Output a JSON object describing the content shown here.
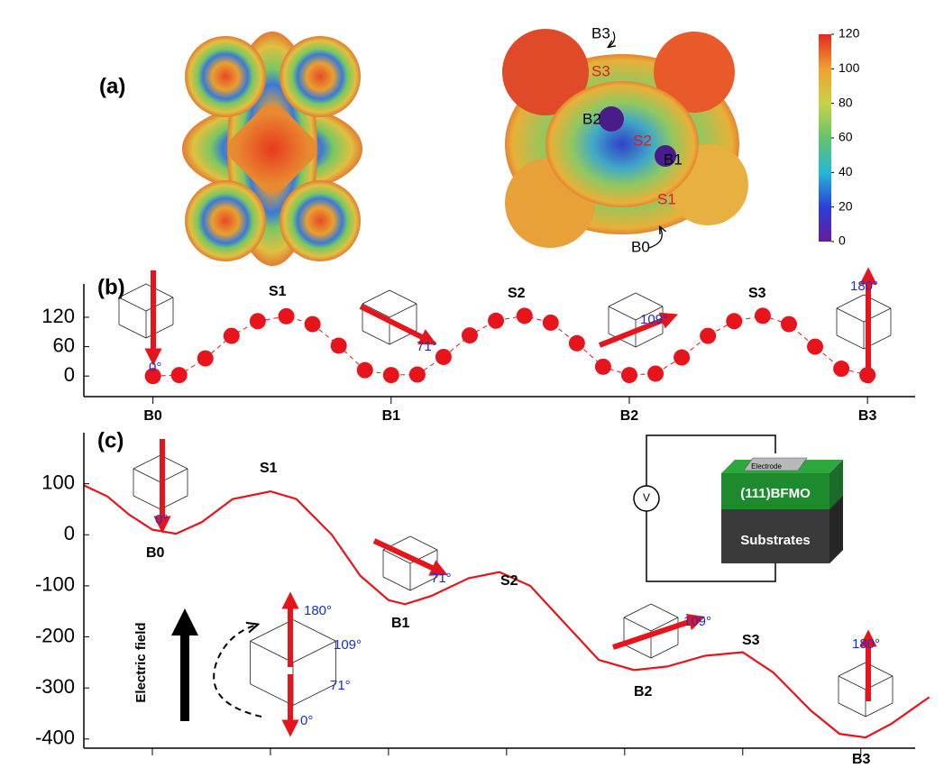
{
  "chart_data": [
    {
      "type": "colorbar",
      "label": "(a)",
      "annotations": [
        "B3",
        "S3",
        "B2",
        "S2",
        "B1",
        "S1",
        "B0"
      ],
      "colors": [
        "#6a1b9a",
        "#2a3fd8",
        "#27b7d6",
        "#62c56a",
        "#c8d24a",
        "#f0a030",
        "#e02a20"
      ],
      "ylim": [
        0,
        120
      ],
      "yticks": [
        0,
        20,
        40,
        60,
        80,
        100,
        120
      ]
    },
    {
      "type": "line",
      "label": "(b)",
      "markers": true,
      "dashed": true,
      "annotations": [
        "S1",
        "S2",
        "S3",
        "0°",
        "71°",
        "109°",
        "180°"
      ],
      "x": [
        0,
        0.11,
        0.22,
        0.33,
        0.44,
        0.56,
        0.67,
        0.78,
        0.89,
        1,
        1.11,
        1.22,
        1.33,
        1.44,
        1.56,
        1.67,
        1.78,
        1.89,
        2,
        2.11,
        2.22,
        2.33,
        2.44,
        2.56,
        2.67,
        2.78,
        2.89,
        3
      ],
      "series": [
        {
          "color": "#e8141b",
          "values": [
            0,
            2,
            36,
            82,
            112,
            122,
            106,
            62,
            12,
            2,
            3,
            39,
            83,
            113,
            123,
            109,
            67,
            19,
            2,
            5,
            38,
            82,
            112,
            123,
            106,
            60,
            15,
            2
          ]
        }
      ],
      "xlim": [
        -0.29,
        3.2
      ],
      "ylim": [
        -42,
        188
      ],
      "yticks": [
        0,
        60,
        120
      ],
      "xticks": [
        {
          "value": 0,
          "label": "B0"
        },
        {
          "value": 1,
          "label": "B1"
        },
        {
          "value": 2,
          "label": "B2"
        },
        {
          "value": 3,
          "label": "B3"
        }
      ]
    },
    {
      "type": "line",
      "label": "(c)",
      "markers": false,
      "dashed": false,
      "annotations": [
        "S1",
        "B0",
        "B1",
        "S2",
        "B2",
        "S3",
        "B3",
        "0°",
        "71°",
        "109°",
        "180°",
        "Electric field",
        "180°",
        "109°",
        "71°",
        "0°",
        "V",
        "Electrode",
        "(111)BFMO",
        "Substrates"
      ],
      "x": [
        -0.29,
        -0.19,
        -0.1,
        0,
        0.1,
        0.21,
        0.34,
        0.5,
        0.61,
        0.76,
        0.88,
        1,
        1.07,
        1.18,
        1.34,
        1.47,
        1.6,
        1.76,
        1.89,
        2.04,
        2.18,
        2.34,
        2.5,
        2.63,
        2.79,
        2.91,
        3.02,
        3.13,
        3.29
      ],
      "series": [
        {
          "color": "#e8141b",
          "values": [
            97,
            75,
            40,
            10,
            2,
            25,
            70,
            85,
            70,
            0,
            -80,
            -128,
            -136,
            -120,
            -85,
            -73,
            -100,
            -180,
            -245,
            -265,
            -258,
            -237,
            -230,
            -270,
            -345,
            -390,
            -397,
            -370,
            -318
          ]
        }
      ],
      "xlim": [
        -0.29,
        3.23
      ],
      "ylim": [
        -418,
        200
      ],
      "yticks": [
        100,
        0,
        -100,
        -200,
        -300,
        -400
      ],
      "xticks": [
        0,
        0.5,
        1,
        1.5,
        2,
        2.5,
        3
      ]
    }
  ]
}
